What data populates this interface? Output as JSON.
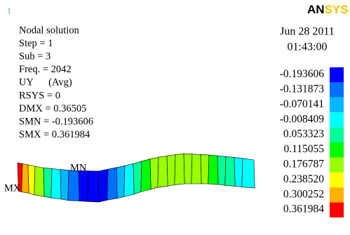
{
  "window_number": "1",
  "logo": {
    "main": "AN",
    "accent": "SYS"
  },
  "info": [
    "Nodal solution",
    "Step = 1",
    "Sub = 3",
    "Freq. = 2042",
    "UY      (Avg)",
    "RSYS = 0",
    "DMX = 0.36505",
    "SMN = -0.193606",
    "SMX = 0.361984"
  ],
  "date": "Jun 28 2011",
  "time": "01:43:00",
  "legend": [
    {
      "label": "-0.193606",
      "color": "#0000ff"
    },
    {
      "label": "-0.131873",
      "color": "#0070ff"
    },
    {
      "label": "-0.070141",
      "color": "#00b8ff"
    },
    {
      "label": "-0.008409",
      "color": "#00ffff"
    },
    {
      "label": "0.053323",
      "color": "#00ff9a"
    },
    {
      "label": "0.115055",
      "color": "#00ff00"
    },
    {
      "label": "0.176787",
      "color": "#9aff00"
    },
    {
      "label": "0.238520",
      "color": "#ffff00"
    },
    {
      "label": "0.300252",
      "color": "#ffb000"
    },
    {
      "label": "0.361984",
      "color": "#ff0000"
    }
  ],
  "min_label": "MN",
  "max_label": "MX"
}
